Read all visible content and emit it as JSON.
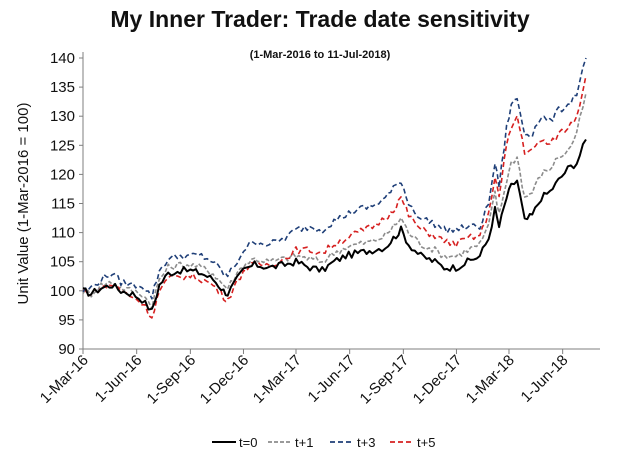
{
  "chart_data": {
    "type": "line",
    "title": "My Inner Trader: Trade date sensitivity",
    "subtitle": "(1-Mar-2016 to 11-Jul-2018)",
    "xlabel": "",
    "ylabel": "Unit Value (1-Mar-2016 = 100)",
    "ylim": [
      90,
      140
    ],
    "yticks": [
      90,
      95,
      100,
      105,
      110,
      115,
      120,
      125,
      130,
      135,
      140
    ],
    "xlim": [
      "2016-03-01",
      "2018-07-11"
    ],
    "xtick_labels": [
      "1-Mar-16",
      "1-Jun-16",
      "1-Sep-16",
      "1-Dec-16",
      "1-Mar-17",
      "1-Jun-17",
      "1-Sep-17",
      "1-Dec-17",
      "1-Mar-18",
      "1-Jun-18"
    ],
    "xtick_dates": [
      "2016-03-01",
      "2016-06-01",
      "2016-09-01",
      "2016-12-01",
      "2017-03-01",
      "2017-06-01",
      "2017-09-01",
      "2017-12-01",
      "2018-03-01",
      "2018-06-01"
    ],
    "grid": false,
    "legend_position": "bottom",
    "series": [
      {
        "name": "t=0",
        "color": "#000000",
        "dash": "solid",
        "points": [
          [
            "2016-03-01",
            100
          ],
          [
            "2016-03-15",
            99.5
          ],
          [
            "2016-04-01",
            100.5
          ],
          [
            "2016-04-20",
            101
          ],
          [
            "2016-05-05",
            100
          ],
          [
            "2016-05-25",
            99.5
          ],
          [
            "2016-06-10",
            98.5
          ],
          [
            "2016-06-27",
            96.5
          ],
          [
            "2016-07-10",
            101
          ],
          [
            "2016-07-25",
            103
          ],
          [
            "2016-08-15",
            103.5
          ],
          [
            "2016-09-01",
            103.5
          ],
          [
            "2016-09-20",
            103
          ],
          [
            "2016-10-10",
            102
          ],
          [
            "2016-10-28",
            100
          ],
          [
            "2016-11-04",
            99.5
          ],
          [
            "2016-11-20",
            102
          ],
          [
            "2016-12-01",
            103.5
          ],
          [
            "2016-12-20",
            104.5
          ],
          [
            "2017-01-15",
            104
          ],
          [
            "2017-02-10",
            104.5
          ],
          [
            "2017-03-01",
            105
          ],
          [
            "2017-03-25",
            104
          ],
          [
            "2017-04-15",
            103.5
          ],
          [
            "2017-05-05",
            105
          ],
          [
            "2017-05-25",
            106
          ],
          [
            "2017-06-15",
            106.5
          ],
          [
            "2017-07-10",
            107
          ],
          [
            "2017-08-01",
            107.5
          ],
          [
            "2017-08-15",
            109
          ],
          [
            "2017-08-28",
            110.5
          ],
          [
            "2017-09-10",
            108
          ],
          [
            "2017-10-01",
            106
          ],
          [
            "2017-10-25",
            105
          ],
          [
            "2017-11-10",
            104
          ],
          [
            "2017-11-30",
            104
          ],
          [
            "2017-12-20",
            105
          ],
          [
            "2018-01-10",
            106
          ],
          [
            "2018-01-25",
            109
          ],
          [
            "2018-02-05",
            114
          ],
          [
            "2018-02-12",
            111
          ],
          [
            "2018-02-25",
            116
          ],
          [
            "2018-03-05",
            118
          ],
          [
            "2018-03-15",
            119
          ],
          [
            "2018-03-28",
            112
          ],
          [
            "2018-04-10",
            113
          ],
          [
            "2018-04-25",
            116
          ],
          [
            "2018-05-10",
            117
          ],
          [
            "2018-05-25",
            119
          ],
          [
            "2018-06-10",
            121
          ],
          [
            "2018-06-25",
            122
          ],
          [
            "2018-07-11",
            126
          ]
        ]
      },
      {
        "name": "t+1",
        "color": "#8c8c8c",
        "dash": "4,2",
        "points": [
          [
            "2016-03-01",
            100
          ],
          [
            "2016-03-15",
            99.5
          ],
          [
            "2016-04-01",
            101
          ],
          [
            "2016-04-20",
            101.5
          ],
          [
            "2016-05-05",
            100.5
          ],
          [
            "2016-05-25",
            100
          ],
          [
            "2016-06-10",
            99.5
          ],
          [
            "2016-06-27",
            97.5
          ],
          [
            "2016-07-10",
            102
          ],
          [
            "2016-07-25",
            104
          ],
          [
            "2016-08-15",
            104.5
          ],
          [
            "2016-09-01",
            104.5
          ],
          [
            "2016-09-20",
            104
          ],
          [
            "2016-10-10",
            103
          ],
          [
            "2016-10-28",
            101
          ],
          [
            "2016-11-04",
            100.5
          ],
          [
            "2016-11-20",
            103
          ],
          [
            "2016-12-01",
            104.5
          ],
          [
            "2016-12-20",
            105.5
          ],
          [
            "2017-01-15",
            105
          ],
          [
            "2017-02-10",
            105.5
          ],
          [
            "2017-03-01",
            106
          ],
          [
            "2017-03-25",
            105.5
          ],
          [
            "2017-04-15",
            105
          ],
          [
            "2017-05-05",
            106.5
          ],
          [
            "2017-05-25",
            107.5
          ],
          [
            "2017-06-15",
            108
          ],
          [
            "2017-07-10",
            108.5
          ],
          [
            "2017-08-01",
            109.5
          ],
          [
            "2017-08-15",
            111
          ],
          [
            "2017-08-28",
            112.5
          ],
          [
            "2017-09-10",
            110
          ],
          [
            "2017-10-01",
            108
          ],
          [
            "2017-10-25",
            107
          ],
          [
            "2017-11-10",
            106
          ],
          [
            "2017-11-30",
            106
          ],
          [
            "2017-12-20",
            107
          ],
          [
            "2018-01-10",
            108
          ],
          [
            "2018-01-25",
            111
          ],
          [
            "2018-02-05",
            117
          ],
          [
            "2018-02-12",
            113
          ],
          [
            "2018-02-25",
            119
          ],
          [
            "2018-03-05",
            122
          ],
          [
            "2018-03-15",
            123
          ],
          [
            "2018-03-28",
            116
          ],
          [
            "2018-04-10",
            117
          ],
          [
            "2018-04-25",
            120
          ],
          [
            "2018-05-10",
            121
          ],
          [
            "2018-05-25",
            123
          ],
          [
            "2018-06-10",
            124
          ],
          [
            "2018-06-25",
            127
          ],
          [
            "2018-07-11",
            134
          ]
        ]
      },
      {
        "name": "t+3",
        "color": "#1f3f78",
        "dash": "5,3",
        "points": [
          [
            "2016-03-01",
            100
          ],
          [
            "2016-03-15",
            100.5
          ],
          [
            "2016-04-01",
            102
          ],
          [
            "2016-04-20",
            103
          ],
          [
            "2016-05-05",
            101.5
          ],
          [
            "2016-05-25",
            101
          ],
          [
            "2016-06-10",
            101
          ],
          [
            "2016-06-27",
            99
          ],
          [
            "2016-07-10",
            103.5
          ],
          [
            "2016-07-25",
            105.5
          ],
          [
            "2016-08-15",
            106
          ],
          [
            "2016-09-01",
            106
          ],
          [
            "2016-09-20",
            106
          ],
          [
            "2016-10-10",
            105
          ],
          [
            "2016-10-28",
            103
          ],
          [
            "2016-11-04",
            102.5
          ],
          [
            "2016-11-20",
            105
          ],
          [
            "2016-12-01",
            107
          ],
          [
            "2016-12-20",
            108.5
          ],
          [
            "2017-01-15",
            108
          ],
          [
            "2017-02-10",
            109
          ],
          [
            "2017-03-01",
            110.5
          ],
          [
            "2017-03-25",
            111
          ],
          [
            "2017-04-15",
            110.5
          ],
          [
            "2017-05-05",
            112
          ],
          [
            "2017-05-25",
            113
          ],
          [
            "2017-06-15",
            114
          ],
          [
            "2017-07-10",
            114.5
          ],
          [
            "2017-08-01",
            116
          ],
          [
            "2017-08-15",
            117.5
          ],
          [
            "2017-08-28",
            119
          ],
          [
            "2017-09-10",
            115
          ],
          [
            "2017-10-01",
            112.5
          ],
          [
            "2017-10-25",
            111.5
          ],
          [
            "2017-11-10",
            110.5
          ],
          [
            "2017-11-30",
            110.5
          ],
          [
            "2017-12-20",
            111
          ],
          [
            "2018-01-10",
            111
          ],
          [
            "2018-01-25",
            115
          ],
          [
            "2018-02-05",
            122
          ],
          [
            "2018-02-12",
            118
          ],
          [
            "2018-02-25",
            128
          ],
          [
            "2018-03-05",
            132
          ],
          [
            "2018-03-15",
            133
          ],
          [
            "2018-03-28",
            127
          ],
          [
            "2018-04-10",
            127
          ],
          [
            "2018-04-25",
            130
          ],
          [
            "2018-05-10",
            129
          ],
          [
            "2018-05-25",
            131
          ],
          [
            "2018-06-10",
            132
          ],
          [
            "2018-06-25",
            134
          ],
          [
            "2018-07-11",
            140
          ]
        ]
      },
      {
        "name": "t+5",
        "color": "#d62020",
        "dash": "5,3",
        "points": [
          [
            "2016-03-01",
            100
          ],
          [
            "2016-03-15",
            99.5
          ],
          [
            "2016-04-01",
            100.5
          ],
          [
            "2016-04-20",
            101
          ],
          [
            "2016-05-05",
            100
          ],
          [
            "2016-05-25",
            99
          ],
          [
            "2016-06-10",
            98
          ],
          [
            "2016-06-27",
            95.5
          ],
          [
            "2016-07-10",
            100
          ],
          [
            "2016-07-25",
            102
          ],
          [
            "2016-08-15",
            102.5
          ],
          [
            "2016-09-01",
            102.5
          ],
          [
            "2016-09-20",
            102
          ],
          [
            "2016-10-10",
            101
          ],
          [
            "2016-10-28",
            99
          ],
          [
            "2016-11-04",
            98.5
          ],
          [
            "2016-11-20",
            101.5
          ],
          [
            "2016-12-01",
            103.5
          ],
          [
            "2016-12-20",
            104.5
          ],
          [
            "2017-01-15",
            104.5
          ],
          [
            "2017-02-10",
            105.5
          ],
          [
            "2017-03-01",
            107
          ],
          [
            "2017-03-25",
            107
          ],
          [
            "2017-04-15",
            106.5
          ],
          [
            "2017-05-05",
            108
          ],
          [
            "2017-05-25",
            109
          ],
          [
            "2017-06-15",
            110
          ],
          [
            "2017-07-10",
            111
          ],
          [
            "2017-08-01",
            112.5
          ],
          [
            "2017-08-15",
            114
          ],
          [
            "2017-08-28",
            116
          ],
          [
            "2017-09-10",
            113
          ],
          [
            "2017-10-01",
            110.5
          ],
          [
            "2017-10-25",
            109.5
          ],
          [
            "2017-11-10",
            108.5
          ],
          [
            "2017-11-30",
            108
          ],
          [
            "2017-12-20",
            109
          ],
          [
            "2018-01-10",
            109.5
          ],
          [
            "2018-01-25",
            113
          ],
          [
            "2018-02-05",
            120
          ],
          [
            "2018-02-12",
            116
          ],
          [
            "2018-02-25",
            125
          ],
          [
            "2018-03-05",
            128
          ],
          [
            "2018-03-15",
            130
          ],
          [
            "2018-03-28",
            124
          ],
          [
            "2018-04-10",
            124
          ],
          [
            "2018-04-25",
            126
          ],
          [
            "2018-05-10",
            125
          ],
          [
            "2018-05-25",
            127
          ],
          [
            "2018-06-10",
            128
          ],
          [
            "2018-06-25",
            130
          ],
          [
            "2018-07-11",
            137
          ]
        ]
      }
    ]
  }
}
